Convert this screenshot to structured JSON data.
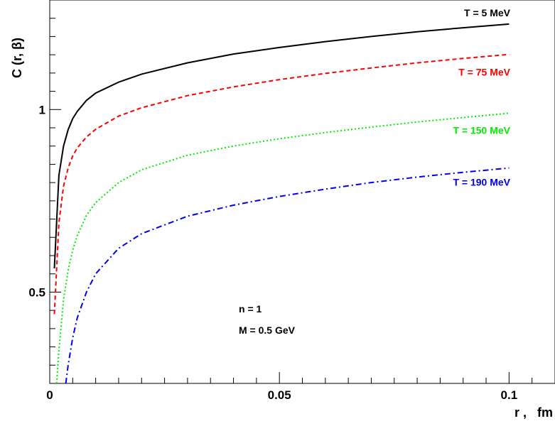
{
  "chart_data": {
    "type": "line",
    "title": "",
    "xlabel": "r ,   fm",
    "ylabel": "C (r, β)",
    "xlim": [
      0,
      0.11
    ],
    "ylim": [
      0.25,
      1.3
    ],
    "y_scale": "linear",
    "x_ticks": [
      {
        "value": 0,
        "label": "0"
      },
      {
        "value": 0.05,
        "label": "0.05"
      },
      {
        "value": 0.1,
        "label": "0.1"
      }
    ],
    "y_ticks": [
      {
        "value": 0.5,
        "label": "0.5"
      },
      {
        "value": 1,
        "label": "1"
      }
    ],
    "grid": false,
    "series": [
      {
        "name": "T = 5 MeV",
        "color": "#000000",
        "dash": "solid",
        "x": [
          0.001,
          0.002,
          0.003,
          0.004,
          0.005,
          0.006,
          0.008,
          0.01,
          0.015,
          0.02,
          0.03,
          0.04,
          0.05,
          0.06,
          0.07,
          0.08,
          0.09,
          0.1
        ],
        "y": [
          0.565,
          0.82,
          0.9,
          0.945,
          0.975,
          0.995,
          1.025,
          1.045,
          1.075,
          1.097,
          1.128,
          1.152,
          1.17,
          1.186,
          1.2,
          1.213,
          1.224,
          1.234
        ]
      },
      {
        "name": "T = 75 MeV",
        "color": "#ff0000",
        "dash": "dashed",
        "x": [
          0.001,
          0.002,
          0.003,
          0.004,
          0.005,
          0.006,
          0.008,
          0.01,
          0.015,
          0.02,
          0.03,
          0.04,
          0.05,
          0.06,
          0.07,
          0.08,
          0.09,
          0.1
        ],
        "y": [
          0.44,
          0.69,
          0.79,
          0.84,
          0.873,
          0.895,
          0.925,
          0.946,
          0.982,
          1.005,
          1.038,
          1.062,
          1.082,
          1.099,
          1.114,
          1.128,
          1.14,
          1.151
        ]
      },
      {
        "name": "T = 150 MeV",
        "color": "#00ee00",
        "dash": "dotted",
        "x": [
          0.0015,
          0.002,
          0.003,
          0.004,
          0.005,
          0.006,
          0.008,
          0.01,
          0.015,
          0.02,
          0.03,
          0.04,
          0.05,
          0.06,
          0.07,
          0.08,
          0.09,
          0.1
        ],
        "y": [
          0.25,
          0.34,
          0.48,
          0.56,
          0.615,
          0.655,
          0.71,
          0.745,
          0.8,
          0.835,
          0.875,
          0.9,
          0.92,
          0.937,
          0.952,
          0.966,
          0.978,
          0.99
        ]
      },
      {
        "name": "T = 190 MeV",
        "color": "#0000ee",
        "dash": "dashdot",
        "x": [
          0.0035,
          0.004,
          0.005,
          0.006,
          0.008,
          0.01,
          0.015,
          0.02,
          0.03,
          0.04,
          0.05,
          0.06,
          0.07,
          0.08,
          0.09,
          0.1
        ],
        "y": [
          0.25,
          0.3,
          0.375,
          0.43,
          0.5,
          0.55,
          0.62,
          0.66,
          0.708,
          0.738,
          0.762,
          0.782,
          0.8,
          0.815,
          0.828,
          0.84
        ]
      }
    ],
    "annotations": [
      "n = 1",
      "M = 0.5 GeV"
    ]
  }
}
